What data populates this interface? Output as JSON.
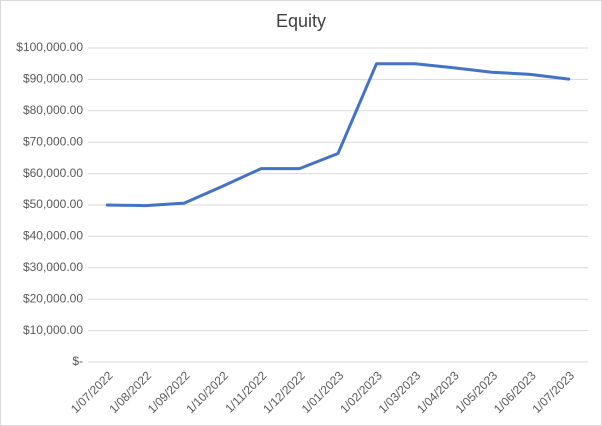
{
  "chart_data": {
    "type": "line",
    "title": "Equity",
    "categories": [
      "1/07/2022",
      "1/08/2022",
      "1/09/2022",
      "1/10/2022",
      "1/11/2022",
      "1/12/2022",
      "1/01/2023",
      "1/02/2023",
      "1/03/2023",
      "1/04/2023",
      "1/05/2023",
      "1/06/2023",
      "1/07/2023"
    ],
    "values": [
      50000,
      49800,
      50600,
      56000,
      61600,
      61600,
      66400,
      95000,
      95000,
      93700,
      92300,
      91600,
      90100
    ],
    "color": "#4472c4",
    "ylim": [
      0,
      100000
    ],
    "yticks": [
      {
        "value": 0,
        "label": "$-"
      },
      {
        "value": 10000,
        "label": "$10,000.00"
      },
      {
        "value": 20000,
        "label": "$20,000.00"
      },
      {
        "value": 30000,
        "label": "$30,000.00"
      },
      {
        "value": 40000,
        "label": "$40,000.00"
      },
      {
        "value": 50000,
        "label": "$50,000.00"
      },
      {
        "value": 60000,
        "label": "$60,000.00"
      },
      {
        "value": 70000,
        "label": "$70,000.00"
      },
      {
        "value": 80000,
        "label": "$80,000.00"
      },
      {
        "value": 90000,
        "label": "$90,000.00"
      },
      {
        "value": 100000,
        "label": "$100,000.00"
      }
    ],
    "grid": true
  }
}
